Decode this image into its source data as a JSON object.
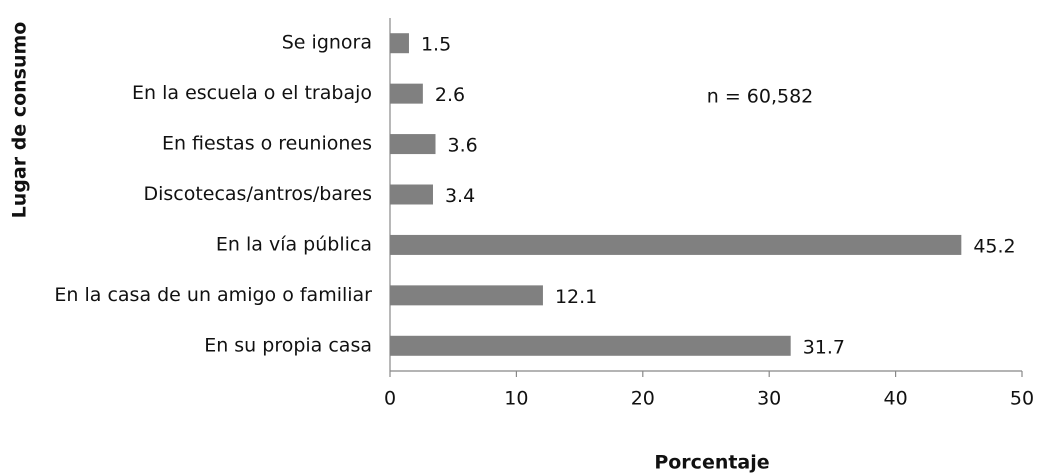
{
  "chart_data": {
    "type": "bar",
    "orientation": "horizontal",
    "categories": [
      "Se ignora",
      "En la escuela o el trabajo",
      "En fiestas o reuniones",
      "Discotecas/antros/bares",
      "En la vía pública",
      "En la casa de un amigo o familiar",
      "En su propia casa"
    ],
    "values": [
      1.5,
      2.6,
      3.6,
      3.4,
      45.2,
      12.1,
      31.7
    ],
    "color": "#808080",
    "xlabel": "Porcentaje",
    "ylabel": "Lugar de consumo",
    "annotation": "n = 60,582",
    "xlim": [
      0,
      50
    ],
    "xticks": [
      0,
      10,
      20,
      30,
      40,
      50
    ],
    "grid": false
  }
}
